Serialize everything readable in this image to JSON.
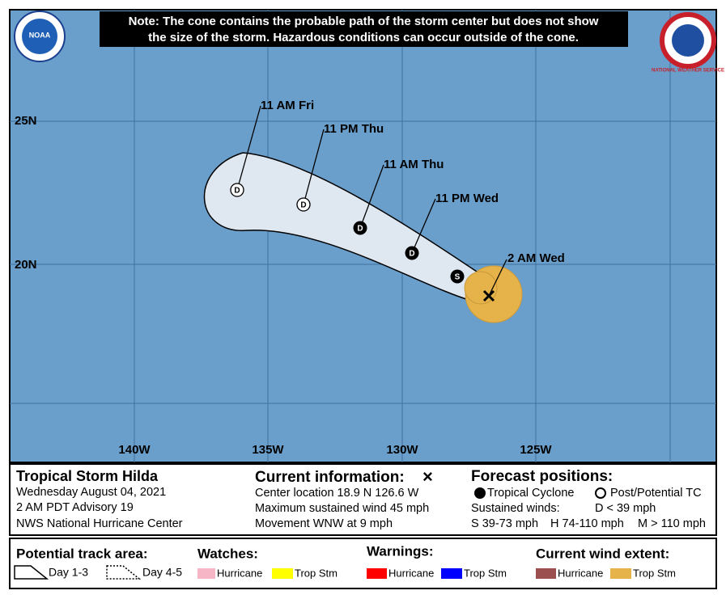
{
  "note": {
    "lines": [
      "Note: The cone contains the probable path of the storm center but does not show",
      "the size of the storm. Hazardous conditions can occur outside of the cone."
    ]
  },
  "logos": {
    "left": "NOAA",
    "right": "NATIONAL WEATHER SERVICE"
  },
  "map": {
    "lat_labels": [
      "25N",
      "20N"
    ],
    "lon_labels": [
      "140W",
      "135W",
      "130W",
      "125W"
    ],
    "forecast_points": [
      {
        "time": "11 AM Fri",
        "marker": "D"
      },
      {
        "time": "11 PM Thu",
        "marker": "D"
      },
      {
        "time": "11 AM Thu",
        "marker": "D"
      },
      {
        "time": "11 PM Wed",
        "marker": "D"
      },
      {
        "time": "2 AM Wed"
      },
      {
        "marker": "S"
      }
    ]
  },
  "storm": {
    "title": "Tropical Storm Hilda",
    "date": "Wednesday August 04, 2021",
    "advisory": "2 AM PDT Advisory 19",
    "center": "NWS National Hurricane Center"
  },
  "current": {
    "heading": "Current information:",
    "symbol": "×",
    "lines": [
      "Center location 18.9 N 126.6 W",
      "Maximum sustained wind 45 mph",
      "Movement WNW at 9 mph"
    ]
  },
  "forecast": {
    "heading": "Forecast positions:",
    "tropical_cyclone": "Tropical Cyclone",
    "post_potential": "Post/Potential TC",
    "sustained": "Sustained winds:",
    "d": "D < 39 mph",
    "s": "S 39-73 mph",
    "h": "H 74-110 mph",
    "m": "M > 110 mph"
  },
  "legend": {
    "track_heading": "Potential track area:",
    "day13": "Day 1-3",
    "day45": "Day 4-5",
    "watches_heading": "Watches:",
    "watch_hurricane": "Hurricane",
    "watch_ts": "Trop Stm",
    "warnings_heading": "Warnings:",
    "warn_hurricane": "Hurricane",
    "warn_ts": "Trop Stm",
    "wind_heading": "Current wind extent:",
    "wind_hurricane": "Hurricane",
    "wind_ts": "Trop Stm"
  }
}
